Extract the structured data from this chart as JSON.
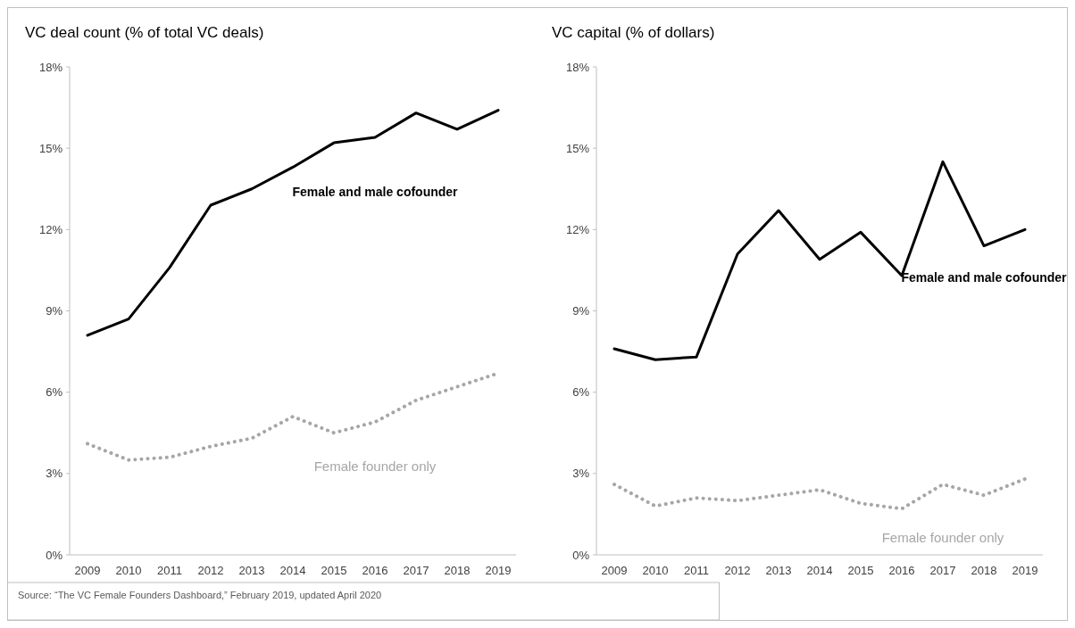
{
  "chart_data": [
    {
      "type": "line",
      "title": "VC deal count (% of total VC deals)",
      "categories": [
        "2009",
        "2010",
        "2011",
        "2012",
        "2013",
        "2014",
        "2015",
        "2016",
        "2017",
        "2018",
        "2019"
      ],
      "ylim": [
        0,
        18
      ],
      "yticks": [
        {
          "value": 0,
          "label": "0%"
        },
        {
          "value": 3,
          "label": "3%"
        },
        {
          "value": 6,
          "label": "6%"
        },
        {
          "value": 9,
          "label": "9%"
        },
        {
          "value": 12,
          "label": "12%"
        },
        {
          "value": 15,
          "label": "15%"
        },
        {
          "value": 18,
          "label": "18%"
        }
      ],
      "series": [
        {
          "name": "Female and male cofounder",
          "color": "#000000",
          "line_style": "solid",
          "values": [
            8.1,
            8.7,
            10.6,
            12.9,
            13.5,
            14.3,
            15.2,
            15.4,
            16.3,
            15.7,
            16.4
          ]
        },
        {
          "name": "Female founder only",
          "color": "#a6a6a6",
          "line_style": "dotted",
          "values": [
            4.1,
            3.5,
            3.6,
            4.0,
            4.3,
            5.1,
            4.5,
            4.9,
            5.7,
            6.2,
            6.7
          ]
        }
      ],
      "annotations": [
        "Source:  “The VC Female Founders Dashboard,” February 2019, updated April 2020"
      ]
    },
    {
      "type": "line",
      "title": "VC capital (% of dollars)",
      "categories": [
        "2009",
        "2010",
        "2011",
        "2012",
        "2013",
        "2014",
        "2015",
        "2016",
        "2017",
        "2018",
        "2019"
      ],
      "ylim": [
        0,
        18
      ],
      "yticks": [
        {
          "value": 0,
          "label": "0%"
        },
        {
          "value": 3,
          "label": "3%"
        },
        {
          "value": 6,
          "label": "6%"
        },
        {
          "value": 9,
          "label": "9%"
        },
        {
          "value": 12,
          "label": "12%"
        },
        {
          "value": 15,
          "label": "15%"
        },
        {
          "value": 18,
          "label": "18%"
        }
      ],
      "series": [
        {
          "name": "Female and male cofounder",
          "color": "#000000",
          "line_style": "solid",
          "values": [
            7.6,
            7.2,
            7.3,
            11.1,
            12.7,
            10.9,
            11.9,
            10.3,
            14.5,
            11.4,
            12.0
          ]
        },
        {
          "name": "Female founder only",
          "color": "#a6a6a6",
          "line_style": "dotted",
          "values": [
            2.6,
            1.8,
            2.1,
            2.0,
            2.2,
            2.4,
            1.9,
            1.7,
            2.6,
            2.2,
            2.8
          ]
        }
      ]
    }
  ]
}
